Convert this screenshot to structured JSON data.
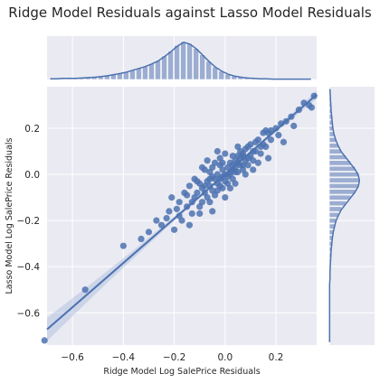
{
  "chart_data": {
    "type": "scatter",
    "title": "Ridge Model Residuals against Lasso Model Residuals",
    "xlabel": "Ridge Model Log SalePrice Residuals",
    "ylabel": "Lasso Model Log SalePrice Residuals",
    "xlim": [
      -0.7,
      0.36
    ],
    "ylim": [
      -0.74,
      0.38
    ],
    "x_ticks": [
      -0.6,
      -0.4,
      -0.2,
      0.0,
      0.2
    ],
    "x_tick_labels": [
      "−0.6",
      "−0.4",
      "−0.2",
      "0.0",
      "0.2"
    ],
    "y_ticks": [
      -0.6,
      -0.4,
      -0.2,
      0.0,
      0.2
    ],
    "y_tick_labels": [
      "−0.6",
      "−0.4",
      "−0.2",
      "0.0",
      "0.2"
    ],
    "grid": true,
    "colors": {
      "points": "#4c72b0",
      "line": "#4c72b0",
      "band": "#a9bbdc",
      "hist": "#9cadd1",
      "panel": "#eaeaf2",
      "grid": "#ffffff"
    },
    "regression": {
      "slope": 0.96,
      "intercept": 0.0
    },
    "marginal_x_hist": {
      "bin_start": -0.7,
      "bin_width": 0.025,
      "density": [
        0.02,
        0.02,
        0.03,
        0.03,
        0.03,
        0.04,
        0.05,
        0.06,
        0.08,
        0.1,
        0.13,
        0.16,
        0.2,
        0.25,
        0.3,
        0.35,
        0.42,
        0.5,
        0.62,
        0.75,
        0.9,
        1.0,
        0.95,
        0.82,
        0.65,
        0.48,
        0.33,
        0.22,
        0.14,
        0.09,
        0.06,
        0.04,
        0.03,
        0.02,
        0.02,
        0.01,
        0.01,
        0.01,
        0.01,
        0.01,
        0.01,
        0.01
      ]
    },
    "marginal_y_hist": {
      "bin_start": -0.74,
      "bin_width": 0.025,
      "density": [
        0.01,
        0.01,
        0.01,
        0.01,
        0.01,
        0.01,
        0.01,
        0.01,
        0.01,
        0.01,
        0.01,
        0.02,
        0.02,
        0.03,
        0.04,
        0.05,
        0.06,
        0.08,
        0.1,
        0.13,
        0.17,
        0.22,
        0.3,
        0.4,
        0.55,
        0.7,
        0.85,
        0.96,
        1.0,
        0.96,
        0.85,
        0.7,
        0.55,
        0.4,
        0.3,
        0.22,
        0.16,
        0.12,
        0.1,
        0.08,
        0.06,
        0.05,
        0.04,
        0.03,
        0.02
      ]
    },
    "points": [
      [
        -0.71,
        -0.72
      ],
      [
        -0.55,
        -0.5
      ],
      [
        -0.4,
        -0.31
      ],
      [
        -0.33,
        -0.28
      ],
      [
        -0.3,
        -0.25
      ],
      [
        -0.27,
        -0.2
      ],
      [
        -0.25,
        -0.22
      ],
      [
        -0.23,
        -0.19
      ],
      [
        -0.22,
        -0.16
      ],
      [
        -0.21,
        -0.1
      ],
      [
        -0.2,
        -0.24
      ],
      [
        -0.18,
        -0.12
      ],
      [
        -0.17,
        -0.2
      ],
      [
        -0.16,
        -0.08
      ],
      [
        -0.15,
        -0.14
      ],
      [
        -0.14,
        -0.05
      ],
      [
        -0.13,
        -0.17
      ],
      [
        -0.12,
        -0.1
      ],
      [
        -0.12,
        -0.02
      ],
      [
        -0.11,
        -0.08
      ],
      [
        -0.1,
        -0.14
      ],
      [
        -0.1,
        -0.04
      ],
      [
        -0.09,
        -0.06
      ],
      [
        -0.09,
        -0.12
      ],
      [
        -0.08,
        0.02
      ],
      [
        -0.08,
        -0.08
      ],
      [
        -0.07,
        -0.03
      ],
      [
        -0.07,
        -0.1
      ],
      [
        -0.06,
        -0.05
      ],
      [
        -0.06,
        0.01
      ],
      [
        -0.05,
        -0.07
      ],
      [
        -0.05,
        0.03
      ],
      [
        -0.04,
        -0.02
      ],
      [
        -0.04,
        -0.09
      ],
      [
        -0.03,
        0.0
      ],
      [
        -0.03,
        -0.04
      ],
      [
        -0.02,
        0.04
      ],
      [
        -0.02,
        -0.02
      ],
      [
        -0.01,
        -0.06
      ],
      [
        -0.01,
        0.02
      ],
      [
        0.0,
        0.0
      ],
      [
        0.0,
        -0.03
      ],
      [
        0.01,
        0.03
      ],
      [
        0.01,
        -0.01
      ],
      [
        0.02,
        0.05
      ],
      [
        0.02,
        0.01
      ],
      [
        0.03,
        0.02
      ],
      [
        0.03,
        -0.02
      ],
      [
        0.04,
        0.06
      ],
      [
        0.04,
        0.03
      ],
      [
        0.05,
        0.01
      ],
      [
        0.05,
        0.08
      ],
      [
        0.06,
        0.04
      ],
      [
        0.06,
        0.07
      ],
      [
        0.07,
        0.02
      ],
      [
        0.07,
        0.09
      ],
      [
        0.08,
        0.06
      ],
      [
        0.08,
        0.11
      ],
      [
        0.09,
        0.04
      ],
      [
        0.1,
        0.08
      ],
      [
        0.1,
        0.13
      ],
      [
        0.11,
        0.06
      ],
      [
        0.12,
        0.1
      ],
      [
        0.13,
        0.15
      ],
      [
        0.14,
        0.09
      ],
      [
        0.15,
        0.18
      ],
      [
        0.16,
        0.12
      ],
      [
        0.17,
        0.07
      ],
      [
        0.18,
        0.15
      ],
      [
        0.2,
        0.2
      ],
      [
        0.21,
        0.17
      ],
      [
        0.23,
        0.14
      ],
      [
        0.24,
        0.23
      ],
      [
        0.26,
        0.25
      ],
      [
        0.27,
        0.21
      ],
      [
        0.29,
        0.28
      ],
      [
        0.31,
        0.31
      ],
      [
        0.33,
        0.3
      ],
      [
        0.35,
        0.34
      ],
      [
        0.34,
        0.29
      ],
      [
        -0.05,
        -0.16
      ],
      [
        -0.07,
        0.06
      ],
      [
        -0.02,
        0.07
      ],
      [
        0.0,
        -0.1
      ],
      [
        -0.09,
        0.03
      ],
      [
        0.03,
        0.08
      ],
      [
        0.11,
        0.02
      ],
      [
        -0.14,
        -0.22
      ],
      [
        0.05,
        0.12
      ],
      [
        0.08,
        0.0
      ],
      [
        -0.03,
        0.1
      ],
      [
        0.13,
        0.05
      ],
      [
        0.17,
        0.18
      ],
      [
        -0.18,
        -0.18
      ],
      [
        -0.11,
        -0.03
      ],
      [
        0.02,
        -0.06
      ],
      [
        -0.06,
        -0.12
      ],
      [
        0.04,
        -0.04
      ],
      [
        -0.01,
        0.05
      ],
      [
        0.09,
        0.12
      ],
      [
        0.12,
        0.14
      ],
      [
        -0.15,
        -0.09
      ],
      [
        -0.1,
        -0.17
      ],
      [
        0.06,
        0.1
      ],
      [
        0.01,
        -0.04
      ],
      [
        0.07,
        0.04
      ],
      [
        0.15,
        0.13
      ],
      [
        0.22,
        0.22
      ],
      [
        -0.04,
        0.05
      ],
      [
        0.0,
        0.09
      ],
      [
        0.16,
        0.19
      ],
      [
        -0.19,
        -0.15
      ],
      [
        -0.01,
        -0.01
      ],
      [
        0.02,
        0.0
      ],
      [
        0.03,
        0.04
      ],
      [
        -0.02,
        -0.05
      ],
      [
        0.05,
        0.05
      ],
      [
        -0.06,
        -0.02
      ],
      [
        0.09,
        0.07
      ],
      [
        0.11,
        0.1
      ],
      [
        -0.08,
        -0.05
      ],
      [
        0.14,
        0.12
      ],
      [
        0.18,
        0.19
      ],
      [
        -0.13,
        -0.12
      ],
      [
        -0.05,
        -0.01
      ],
      [
        0.04,
        0.01
      ],
      [
        0.07,
        0.08
      ],
      [
        -0.03,
        -0.07
      ]
    ]
  }
}
